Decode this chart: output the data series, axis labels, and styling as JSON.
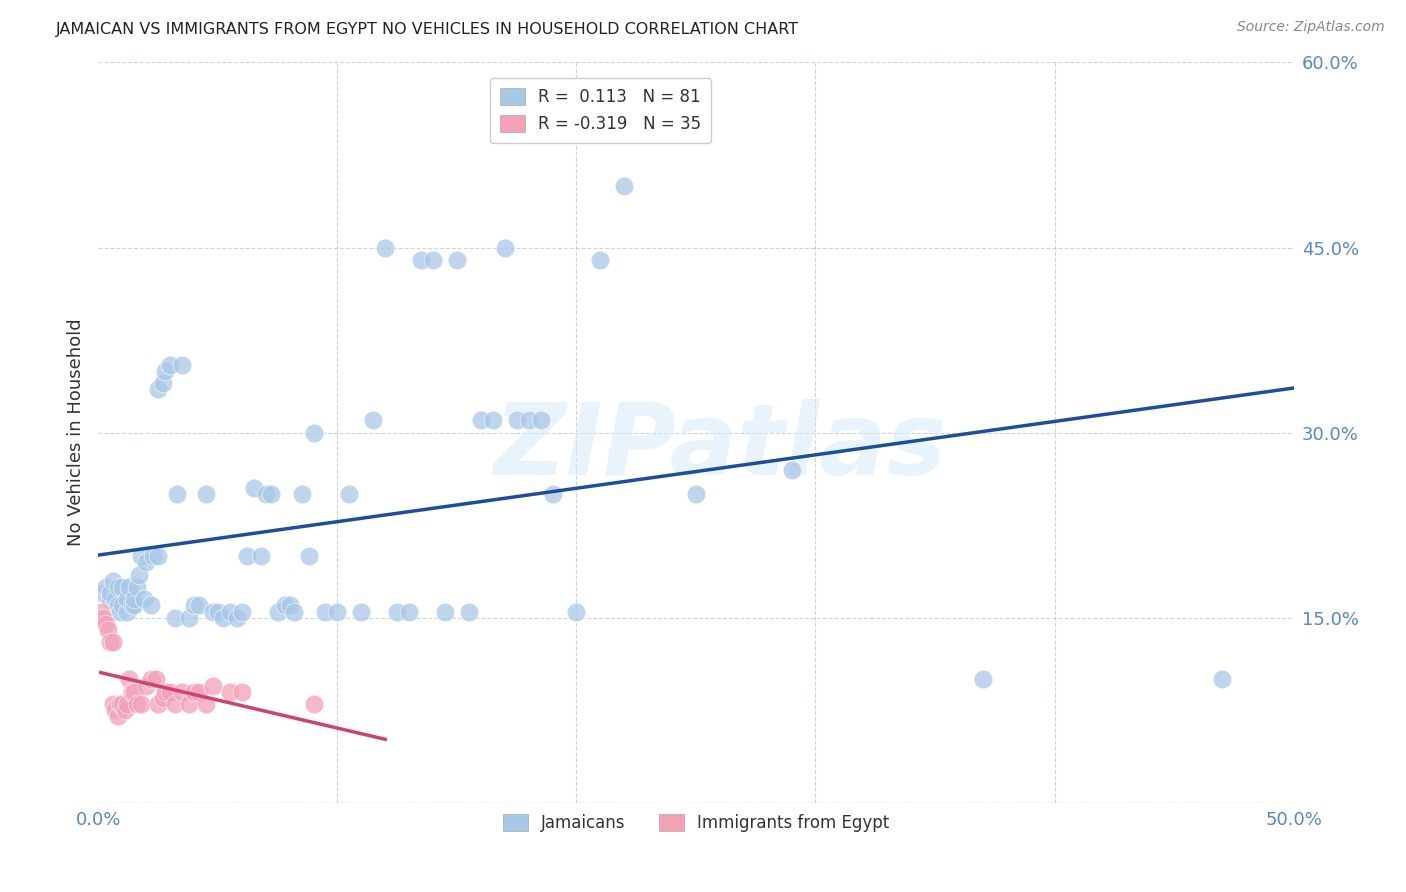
{
  "title": "JAMAICAN VS IMMIGRANTS FROM EGYPT NO VEHICLES IN HOUSEHOLD CORRELATION CHART",
  "source": "Source: ZipAtlas.com",
  "ylabel": "No Vehicles in Household",
  "xlim": [
    0.0,
    0.5
  ],
  "ylim": [
    0.0,
    0.6
  ],
  "xticks": [
    0.0,
    0.5
  ],
  "xticklabels": [
    "0.0%",
    "50.0%"
  ],
  "yticks": [
    0.15,
    0.3,
    0.45,
    0.6
  ],
  "yticklabels": [
    "15.0%",
    "30.0%",
    "45.0%",
    "60.0%"
  ],
  "grid_yticks": [
    0.0,
    0.15,
    0.3,
    0.45,
    0.6
  ],
  "jamaicans_color": "#a8c8e8",
  "egypt_color": "#f4a0b8",
  "blue_line_color": "#1a4fa0",
  "pink_line_color": "#d04070",
  "watermark_text": "ZIPatlas",
  "legend1_label1": "R =  0.113   N = 81",
  "legend1_label2": "R = -0.319   N = 35",
  "legend2_label1": "Jamaicans",
  "legend2_label2": "Immigrants from Egypt",
  "jamaicans_x": [
    0.002,
    0.003,
    0.005,
    0.005,
    0.006,
    0.007,
    0.008,
    0.008,
    0.009,
    0.01,
    0.01,
    0.012,
    0.012,
    0.013,
    0.014,
    0.015,
    0.015,
    0.016,
    0.017,
    0.018,
    0.019,
    0.02,
    0.022,
    0.023,
    0.025,
    0.025,
    0.027,
    0.028,
    0.03,
    0.032,
    0.033,
    0.035,
    0.038,
    0.04,
    0.042,
    0.045,
    0.048,
    0.05,
    0.052,
    0.055,
    0.058,
    0.06,
    0.062,
    0.065,
    0.068,
    0.07,
    0.072,
    0.075,
    0.078,
    0.08,
    0.082,
    0.085,
    0.088,
    0.09,
    0.095,
    0.1,
    0.105,
    0.11,
    0.115,
    0.12,
    0.125,
    0.13,
    0.135,
    0.14,
    0.145,
    0.15,
    0.155,
    0.16,
    0.165,
    0.17,
    0.175,
    0.18,
    0.185,
    0.19,
    0.2,
    0.21,
    0.22,
    0.25,
    0.29,
    0.37,
    0.47
  ],
  "jamaicans_y": [
    0.17,
    0.175,
    0.165,
    0.17,
    0.18,
    0.165,
    0.16,
    0.175,
    0.155,
    0.16,
    0.175,
    0.155,
    0.165,
    0.175,
    0.16,
    0.16,
    0.165,
    0.175,
    0.185,
    0.2,
    0.165,
    0.195,
    0.16,
    0.2,
    0.2,
    0.335,
    0.34,
    0.35,
    0.355,
    0.15,
    0.25,
    0.355,
    0.15,
    0.16,
    0.16,
    0.25,
    0.155,
    0.155,
    0.15,
    0.155,
    0.15,
    0.155,
    0.2,
    0.255,
    0.2,
    0.25,
    0.25,
    0.155,
    0.16,
    0.16,
    0.155,
    0.25,
    0.2,
    0.3,
    0.155,
    0.155,
    0.25,
    0.155,
    0.31,
    0.45,
    0.155,
    0.155,
    0.44,
    0.44,
    0.155,
    0.44,
    0.155,
    0.31,
    0.31,
    0.45,
    0.31,
    0.31,
    0.31,
    0.25,
    0.155,
    0.44,
    0.5,
    0.25,
    0.27,
    0.1,
    0.1
  ],
  "egypt_x": [
    0.001,
    0.002,
    0.003,
    0.004,
    0.005,
    0.006,
    0.006,
    0.007,
    0.008,
    0.009,
    0.01,
    0.011,
    0.012,
    0.013,
    0.014,
    0.015,
    0.016,
    0.018,
    0.02,
    0.022,
    0.024,
    0.025,
    0.027,
    0.028,
    0.03,
    0.032,
    0.035,
    0.038,
    0.04,
    0.042,
    0.045,
    0.048,
    0.055,
    0.06,
    0.09
  ],
  "egypt_y": [
    0.155,
    0.15,
    0.145,
    0.14,
    0.13,
    0.13,
    0.08,
    0.075,
    0.07,
    0.08,
    0.08,
    0.075,
    0.08,
    0.1,
    0.09,
    0.09,
    0.08,
    0.08,
    0.095,
    0.1,
    0.1,
    0.08,
    0.085,
    0.09,
    0.09,
    0.08,
    0.09,
    0.08,
    0.09,
    0.09,
    0.08,
    0.095,
    0.09,
    0.09,
    0.08
  ],
  "egypt_x_line_start": 0.001,
  "egypt_x_line_end": 0.12
}
